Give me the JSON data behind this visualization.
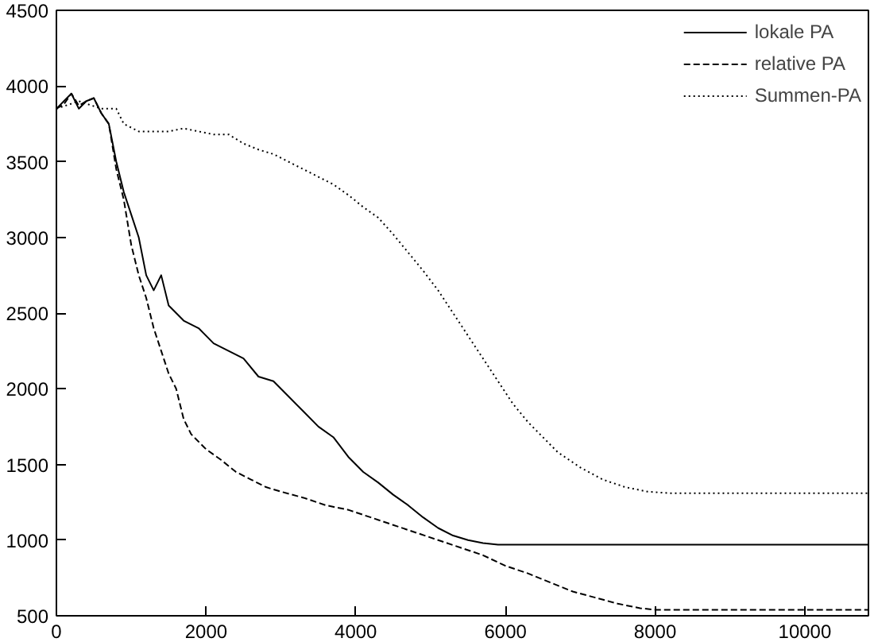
{
  "chart_data": {
    "type": "line",
    "xlim": [
      0,
      10850
    ],
    "ylim": [
      500,
      4500
    ],
    "xticks": [
      0,
      2000,
      4000,
      6000,
      8000,
      10000
    ],
    "yticks": [
      500,
      1000,
      1500,
      2000,
      2500,
      3000,
      3500,
      4000,
      4500
    ],
    "grid": false,
    "legend": "top right",
    "marker": "none",
    "series": [
      {
        "name": "lokale PA",
        "color": "#000000",
        "line_style": "solid",
        "x": [
          0,
          100,
          200,
          300,
          400,
          500,
          600,
          700,
          800,
          900,
          1000,
          1100,
          1200,
          1300,
          1400,
          1500,
          1700,
          1900,
          2100,
          2300,
          2500,
          2700,
          2900,
          3100,
          3300,
          3500,
          3700,
          3900,
          4100,
          4300,
          4500,
          4700,
          4900,
          5100,
          5300,
          5500,
          5700,
          5900,
          6000,
          10850
        ],
        "values": [
          3850,
          3900,
          3950,
          3850,
          3900,
          3920,
          3820,
          3750,
          3500,
          3300,
          3150,
          3000,
          2750,
          2650,
          2750,
          2550,
          2450,
          2400,
          2300,
          2250,
          2200,
          2080,
          2050,
          1950,
          1850,
          1750,
          1680,
          1550,
          1450,
          1380,
          1300,
          1230,
          1150,
          1080,
          1030,
          1000,
          980,
          970,
          970,
          970
        ]
      },
      {
        "name": "relative PA",
        "color": "#000000",
        "line_style": "dashed",
        "x": [
          0,
          100,
          200,
          300,
          400,
          500,
          600,
          700,
          800,
          900,
          1000,
          1100,
          1200,
          1300,
          1400,
          1500,
          1600,
          1700,
          1800,
          2000,
          2200,
          2400,
          2600,
          2800,
          3000,
          3300,
          3600,
          3900,
          4200,
          4500,
          4800,
          5100,
          5400,
          5700,
          6000,
          6300,
          6600,
          6900,
          7200,
          7500,
          7800,
          8000,
          10850
        ],
        "values": [
          3850,
          3880,
          3950,
          3870,
          3900,
          3920,
          3820,
          3750,
          3450,
          3250,
          2950,
          2750,
          2600,
          2400,
          2250,
          2100,
          2000,
          1800,
          1700,
          1600,
          1530,
          1450,
          1400,
          1350,
          1320,
          1280,
          1230,
          1200,
          1150,
          1100,
          1050,
          1000,
          950,
          900,
          830,
          780,
          720,
          660,
          620,
          580,
          550,
          540,
          540
        ]
      },
      {
        "name": "Summen-PA",
        "color": "#000000",
        "line_style": "dotted",
        "x": [
          0,
          300,
          600,
          800,
          900,
          1100,
          1300,
          1500,
          1700,
          1900,
          2100,
          2300,
          2500,
          2700,
          2900,
          3100,
          3300,
          3500,
          3700,
          3900,
          4100,
          4300,
          4500,
          4700,
          4900,
          5100,
          5300,
          5500,
          5700,
          5900,
          6100,
          6300,
          6500,
          6700,
          7000,
          7300,
          7600,
          7900,
          8200,
          10850
        ],
        "values": [
          3850,
          3900,
          3850,
          3850,
          3750,
          3700,
          3700,
          3700,
          3720,
          3700,
          3680,
          3680,
          3620,
          3580,
          3550,
          3500,
          3450,
          3400,
          3350,
          3280,
          3200,
          3130,
          3020,
          2900,
          2780,
          2650,
          2500,
          2350,
          2200,
          2050,
          1900,
          1780,
          1680,
          1580,
          1480,
          1400,
          1350,
          1320,
          1310,
          1310
        ]
      }
    ]
  }
}
